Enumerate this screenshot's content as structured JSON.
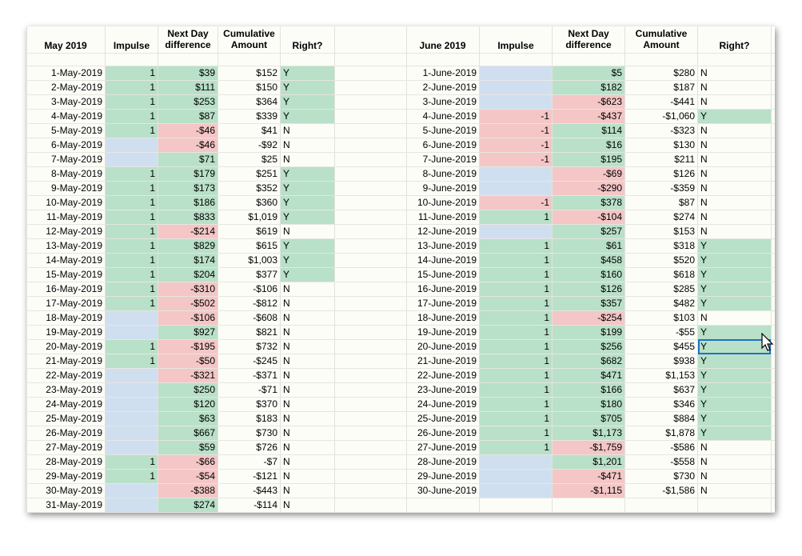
{
  "may": {
    "headers": {
      "date": "May 2019",
      "impulse": "Impulse",
      "nextday": "Next Day\ndifference",
      "cumulative": "Cumulative\nAmount",
      "right": "Right?"
    },
    "rows": [
      [
        "1-May-2019",
        "1",
        "$39",
        "$152",
        "Y"
      ],
      [
        "2-May-2019",
        "1",
        "$111",
        "$150",
        "Y"
      ],
      [
        "3-May-2019",
        "1",
        "$253",
        "$364",
        "Y"
      ],
      [
        "4-May-2019",
        "1",
        "$87",
        "$339",
        "Y"
      ],
      [
        "5-May-2019",
        "1",
        "-$46",
        "$41",
        "N"
      ],
      [
        "6-May-2019",
        "",
        "-$46",
        "-$92",
        "N"
      ],
      [
        "7-May-2019",
        "",
        "$71",
        "$25",
        "N"
      ],
      [
        "8-May-2019",
        "1",
        "$179",
        "$251",
        "Y"
      ],
      [
        "9-May-2019",
        "1",
        "$173",
        "$352",
        "Y"
      ],
      [
        "10-May-2019",
        "1",
        "$186",
        "$360",
        "Y"
      ],
      [
        "11-May-2019",
        "1",
        "$833",
        "$1,019",
        "Y"
      ],
      [
        "12-May-2019",
        "1",
        "-$214",
        "$619",
        "N"
      ],
      [
        "13-May-2019",
        "1",
        "$829",
        "$615",
        "Y"
      ],
      [
        "14-May-2019",
        "1",
        "$174",
        "$1,003",
        "Y"
      ],
      [
        "15-May-2019",
        "1",
        "$204",
        "$377",
        "Y"
      ],
      [
        "16-May-2019",
        "1",
        "-$310",
        "-$106",
        "N"
      ],
      [
        "17-May-2019",
        "1",
        "-$502",
        "-$812",
        "N"
      ],
      [
        "18-May-2019",
        "",
        "-$106",
        "-$608",
        "N"
      ],
      [
        "19-May-2019",
        "",
        "$927",
        "$821",
        "N"
      ],
      [
        "20-May-2019",
        "1",
        "-$195",
        "$732",
        "N"
      ],
      [
        "21-May-2019",
        "1",
        "-$50",
        "-$245",
        "N"
      ],
      [
        "22-May-2019",
        "",
        "-$321",
        "-$371",
        "N"
      ],
      [
        "23-May-2019",
        "",
        "$250",
        "-$71",
        "N"
      ],
      [
        "24-May-2019",
        "",
        "$120",
        "$370",
        "N"
      ],
      [
        "25-May-2019",
        "",
        "$63",
        "$183",
        "N"
      ],
      [
        "26-May-2019",
        "",
        "$667",
        "$730",
        "N"
      ],
      [
        "27-May-2019",
        "",
        "$59",
        "$726",
        "N"
      ],
      [
        "28-May-2019",
        "1",
        "-$66",
        "-$7",
        "N"
      ],
      [
        "29-May-2019",
        "1",
        "-$54",
        "-$121",
        "N"
      ],
      [
        "30-May-2019",
        "",
        "-$388",
        "-$443",
        "N"
      ],
      [
        "31-May-2019",
        "",
        "$274",
        "-$114",
        "N"
      ]
    ]
  },
  "june": {
    "headers": {
      "date": "June 2019",
      "impulse": "Impulse",
      "nextday": "Next Day\ndifference",
      "cumulative": "Cumulative\nAmount",
      "right": "Right?"
    },
    "rows": [
      [
        "1-June-2019",
        "",
        "$5",
        "$280",
        "N"
      ],
      [
        "2-June-2019",
        "",
        "$182",
        "$187",
        "N"
      ],
      [
        "3-June-2019",
        "",
        "-$623",
        "-$441",
        "N"
      ],
      [
        "4-June-2019",
        "-1",
        "-$437",
        "-$1,060",
        "Y"
      ],
      [
        "5-June-2019",
        "-1",
        "$114",
        "-$323",
        "N"
      ],
      [
        "6-June-2019",
        "-1",
        "$16",
        "$130",
        "N"
      ],
      [
        "7-June-2019",
        "-1",
        "$195",
        "$211",
        "N"
      ],
      [
        "8-June-2019",
        "",
        "-$69",
        "$126",
        "N"
      ],
      [
        "9-June-2019",
        "",
        "-$290",
        "-$359",
        "N"
      ],
      [
        "10-June-2019",
        "-1",
        "$378",
        "$87",
        "N"
      ],
      [
        "11-June-2019",
        "1",
        "-$104",
        "$274",
        "N"
      ],
      [
        "12-June-2019",
        "",
        "$257",
        "$153",
        "N"
      ],
      [
        "13-June-2019",
        "1",
        "$61",
        "$318",
        "Y"
      ],
      [
        "14-June-2019",
        "1",
        "$458",
        "$520",
        "Y"
      ],
      [
        "15-June-2019",
        "1",
        "$160",
        "$618",
        "Y"
      ],
      [
        "16-June-2019",
        "1",
        "$126",
        "$285",
        "Y"
      ],
      [
        "17-June-2019",
        "1",
        "$357",
        "$482",
        "Y"
      ],
      [
        "18-June-2019",
        "1",
        "-$254",
        "$103",
        "N"
      ],
      [
        "19-June-2019",
        "1",
        "$199",
        "-$55",
        "Y"
      ],
      [
        "20-June-2019",
        "1",
        "$256",
        "$455",
        "Y"
      ],
      [
        "21-June-2019",
        "1",
        "$682",
        "$938",
        "Y"
      ],
      [
        "22-June-2019",
        "1",
        "$471",
        "$1,153",
        "Y"
      ],
      [
        "23-June-2019",
        "1",
        "$166",
        "$637",
        "Y"
      ],
      [
        "24-June-2019",
        "1",
        "$180",
        "$346",
        "Y"
      ],
      [
        "25-June-2019",
        "1",
        "$705",
        "$884",
        "Y"
      ],
      [
        "26-June-2019",
        "1",
        "$1,173",
        "$1,878",
        "Y"
      ],
      [
        "27-June-2019",
        "1",
        "-$1,759",
        "-$586",
        "N"
      ],
      [
        "28-June-2019",
        "",
        "$1,201",
        "-$558",
        "N"
      ],
      [
        "29-June-2019",
        "",
        "-$471",
        "$730",
        "N"
      ],
      [
        "30-June-2019",
        "",
        "-$1,115",
        "-$1,586",
        "N"
      ]
    ],
    "selected_cell": "20-June-2019 Right?"
  },
  "colors": {
    "positive": "#b9e0c8",
    "negative": "#f4c6c6",
    "no_impulse": "#cfdff0",
    "selection": "#1f6fc9"
  }
}
